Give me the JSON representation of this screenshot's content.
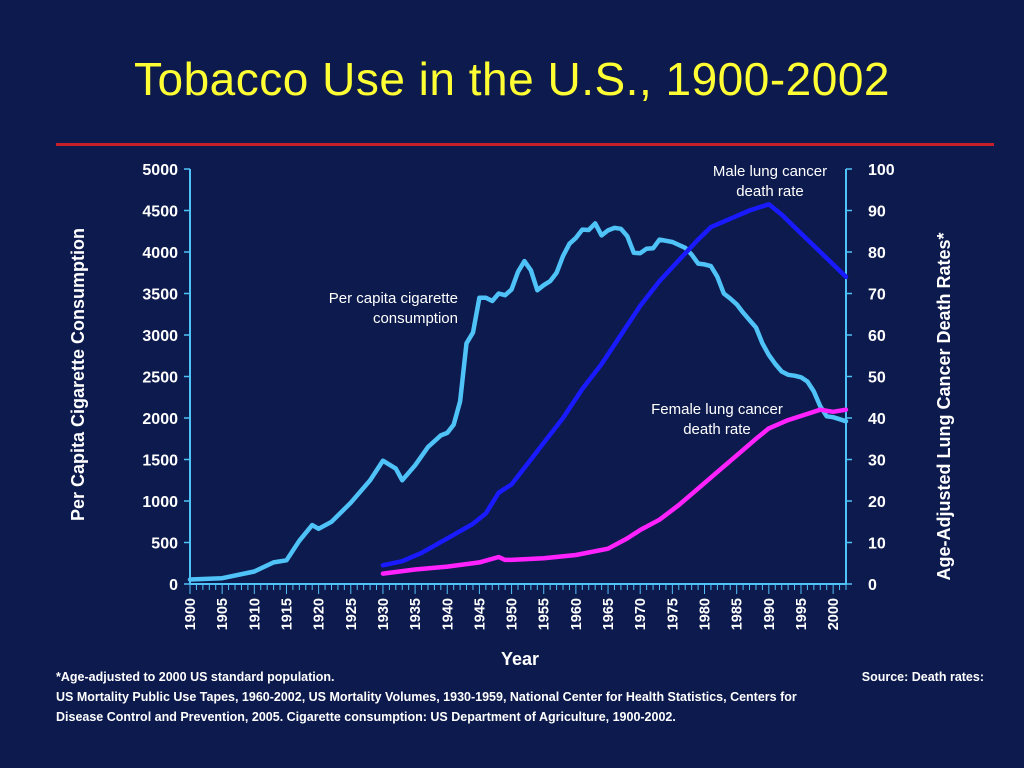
{
  "title": "Tobacco Use in the U.S., 1900-2002",
  "colors": {
    "background": "#0c1a4d",
    "title": "#ffff33",
    "rule": "#c8202a",
    "cigarette": "#4fc3f7",
    "male": "#1a1aff",
    "female": "#ff22ff",
    "axis": "#4fc3f7",
    "text": "#ffffff"
  },
  "chart_data": {
    "type": "line",
    "xlabel": "Year",
    "ylabel_left": "Per Capita Cigarette Consumption",
    "ylabel_right": "Age-Adjusted Lung Cancer Death Rates*",
    "xlim": [
      1900,
      2002
    ],
    "ylim_left": [
      0,
      5000
    ],
    "ylim_right": [
      0,
      100
    ],
    "x_ticks": [
      "1900",
      "1905",
      "1910",
      "1915",
      "1920",
      "1925",
      "1930",
      "1935",
      "1940",
      "1945",
      "1950",
      "1955",
      "1960",
      "1965",
      "1970",
      "1975",
      "1980",
      "1985",
      "1990",
      "1995",
      "2000"
    ],
    "y_ticks_left": [
      "0",
      "500",
      "1000",
      "1500",
      "2000",
      "2500",
      "3000",
      "3500",
      "4000",
      "4500",
      "5000"
    ],
    "y_ticks_right": [
      "0",
      "10",
      "20",
      "30",
      "40",
      "50",
      "60",
      "70",
      "80",
      "90",
      "100"
    ],
    "grid": false,
    "series": [
      {
        "name": "Per capita cigarette consumption",
        "axis": "left",
        "color": "#4fc3f7",
        "points": [
          [
            1900,
            54
          ],
          [
            1905,
            70
          ],
          [
            1910,
            151
          ],
          [
            1913,
            260
          ],
          [
            1915,
            285
          ],
          [
            1917,
            520
          ],
          [
            1919,
            710
          ],
          [
            1920,
            665
          ],
          [
            1922,
            750
          ],
          [
            1925,
            980
          ],
          [
            1928,
            1250
          ],
          [
            1930,
            1485
          ],
          [
            1932,
            1390
          ],
          [
            1933,
            1250
          ],
          [
            1935,
            1430
          ],
          [
            1937,
            1650
          ],
          [
            1939,
            1790
          ],
          [
            1940,
            1820
          ],
          [
            1941,
            1920
          ],
          [
            1942,
            2200
          ],
          [
            1943,
            2900
          ],
          [
            1944,
            3030
          ],
          [
            1945,
            3450
          ],
          [
            1946,
            3450
          ],
          [
            1947,
            3410
          ],
          [
            1948,
            3500
          ],
          [
            1949,
            3480
          ],
          [
            1950,
            3550
          ],
          [
            1951,
            3760
          ],
          [
            1952,
            3890
          ],
          [
            1953,
            3780
          ],
          [
            1954,
            3540
          ],
          [
            1955,
            3600
          ],
          [
            1956,
            3650
          ],
          [
            1957,
            3750
          ],
          [
            1958,
            3950
          ],
          [
            1959,
            4100
          ],
          [
            1960,
            4170
          ],
          [
            1961,
            4270
          ],
          [
            1962,
            4265
          ],
          [
            1963,
            4345
          ],
          [
            1964,
            4200
          ],
          [
            1965,
            4260
          ],
          [
            1966,
            4290
          ],
          [
            1967,
            4280
          ],
          [
            1968,
            4190
          ],
          [
            1969,
            3990
          ],
          [
            1970,
            3985
          ],
          [
            1971,
            4040
          ],
          [
            1972,
            4045
          ],
          [
            1973,
            4150
          ],
          [
            1975,
            4120
          ],
          [
            1977,
            4050
          ],
          [
            1978,
            3970
          ],
          [
            1979,
            3860
          ],
          [
            1980,
            3850
          ],
          [
            1981,
            3830
          ],
          [
            1982,
            3700
          ],
          [
            1983,
            3500
          ],
          [
            1984,
            3440
          ],
          [
            1985,
            3370
          ],
          [
            1986,
            3270
          ],
          [
            1987,
            3180
          ],
          [
            1988,
            3090
          ],
          [
            1989,
            2900
          ],
          [
            1990,
            2760
          ],
          [
            1991,
            2650
          ],
          [
            1992,
            2560
          ],
          [
            1993,
            2520
          ],
          [
            1994,
            2510
          ],
          [
            1995,
            2490
          ],
          [
            1996,
            2440
          ],
          [
            1997,
            2320
          ],
          [
            1998,
            2140
          ],
          [
            1999,
            2020
          ],
          [
            2000,
            2010
          ],
          [
            2001,
            1985
          ],
          [
            2002,
            1960
          ]
        ]
      },
      {
        "name": "Male lung cancer death rate",
        "axis": "right",
        "color": "#1a1aff",
        "points": [
          [
            1930,
            4.5
          ],
          [
            1933,
            5.5
          ],
          [
            1936,
            7.5
          ],
          [
            1940,
            11
          ],
          [
            1944,
            14.5
          ],
          [
            1946,
            17
          ],
          [
            1948,
            22
          ],
          [
            1950,
            24
          ],
          [
            1953,
            30
          ],
          [
            1955,
            34
          ],
          [
            1958,
            40
          ],
          [
            1961,
            47
          ],
          [
            1964,
            53
          ],
          [
            1967,
            60
          ],
          [
            1970,
            67
          ],
          [
            1973,
            73
          ],
          [
            1976,
            78
          ],
          [
            1979,
            83
          ],
          [
            1981,
            86
          ],
          [
            1984,
            88
          ],
          [
            1987,
            90
          ],
          [
            1990,
            91.5
          ],
          [
            1992,
            89
          ],
          [
            1994,
            86
          ],
          [
            1996,
            83
          ],
          [
            1998,
            80
          ],
          [
            2000,
            77
          ],
          [
            2002,
            74
          ]
        ]
      },
      {
        "name": "Female lung cancer death rate",
        "axis": "right",
        "color": "#ff22ff",
        "points": [
          [
            1930,
            2.5
          ],
          [
            1935,
            3.5
          ],
          [
            1940,
            4.2
          ],
          [
            1945,
            5.2
          ],
          [
            1948,
            6.5
          ],
          [
            1949,
            5.8
          ],
          [
            1950,
            5.8
          ],
          [
            1955,
            6.2
          ],
          [
            1960,
            7
          ],
          [
            1965,
            8.5
          ],
          [
            1968,
            11
          ],
          [
            1970,
            13
          ],
          [
            1973,
            15.5
          ],
          [
            1976,
            19
          ],
          [
            1979,
            23
          ],
          [
            1982,
            27
          ],
          [
            1985,
            31
          ],
          [
            1988,
            35
          ],
          [
            1990,
            37.5
          ],
          [
            1993,
            39.5
          ],
          [
            1996,
            41
          ],
          [
            1998,
            42
          ],
          [
            2000,
            41.5
          ],
          [
            2002,
            42
          ]
        ]
      }
    ],
    "annotations": [
      {
        "text_lines": [
          "Per capita cigarette",
          "consumption"
        ],
        "anchor": "end"
      },
      {
        "text_lines": [
          "Male lung cancer",
          "death rate"
        ],
        "anchor": "middle"
      },
      {
        "text_lines": [
          "Female lung cancer",
          "death rate"
        ],
        "anchor": "middle"
      }
    ]
  },
  "footnotes": {
    "line1_left": "*Age-adjusted to 2000 US standard population.",
    "line1_right": "Source: Death rates:",
    "line2": "US Mortality Public Use Tapes, 1960-2002, US Mortality Volumes, 1930-1959,  National Center for Health Statistics, Centers for",
    "line3": "Disease Control and Prevention, 2005. Cigarette consumption: US Department of Agriculture, 1900-2002."
  }
}
